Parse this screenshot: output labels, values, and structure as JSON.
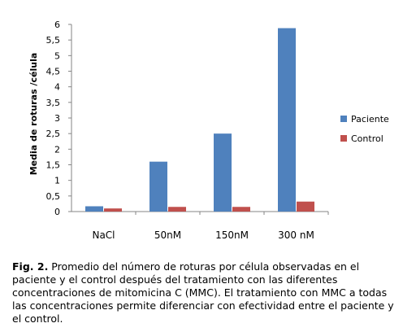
{
  "chart_data": {
    "type": "bar",
    "ylabel": "Media de roturas /célula",
    "xlabel": "",
    "categories": [
      "NaCl",
      "50nM",
      "150nM",
      "300 nM"
    ],
    "ylim": [
      0,
      6
    ],
    "yticks": [
      "0",
      "0,5",
      "1",
      "1,5",
      "2",
      "2,5",
      "3",
      "3,5",
      "4",
      "4,5",
      "5",
      "5,5",
      "6"
    ],
    "series": [
      {
        "name": "Paciente",
        "values": [
          0.17,
          1.6,
          2.5,
          5.88
        ],
        "color": "#4f81bd"
      },
      {
        "name": "Control",
        "values": [
          0.1,
          0.15,
          0.15,
          0.32
        ],
        "color": "#c0504d"
      }
    ],
    "legend": "right",
    "grid": false
  },
  "caption": {
    "label": "Fig. 2.",
    "text": " Promedio del número de roturas por célula observadas en el paciente y el control después del tratamiento con las diferentes concentraciones de mitomicina  C (MMC). El tratamiento con MMC a todas las concentraciones permite diferenciar con efectividad entre el paciente y el control."
  }
}
